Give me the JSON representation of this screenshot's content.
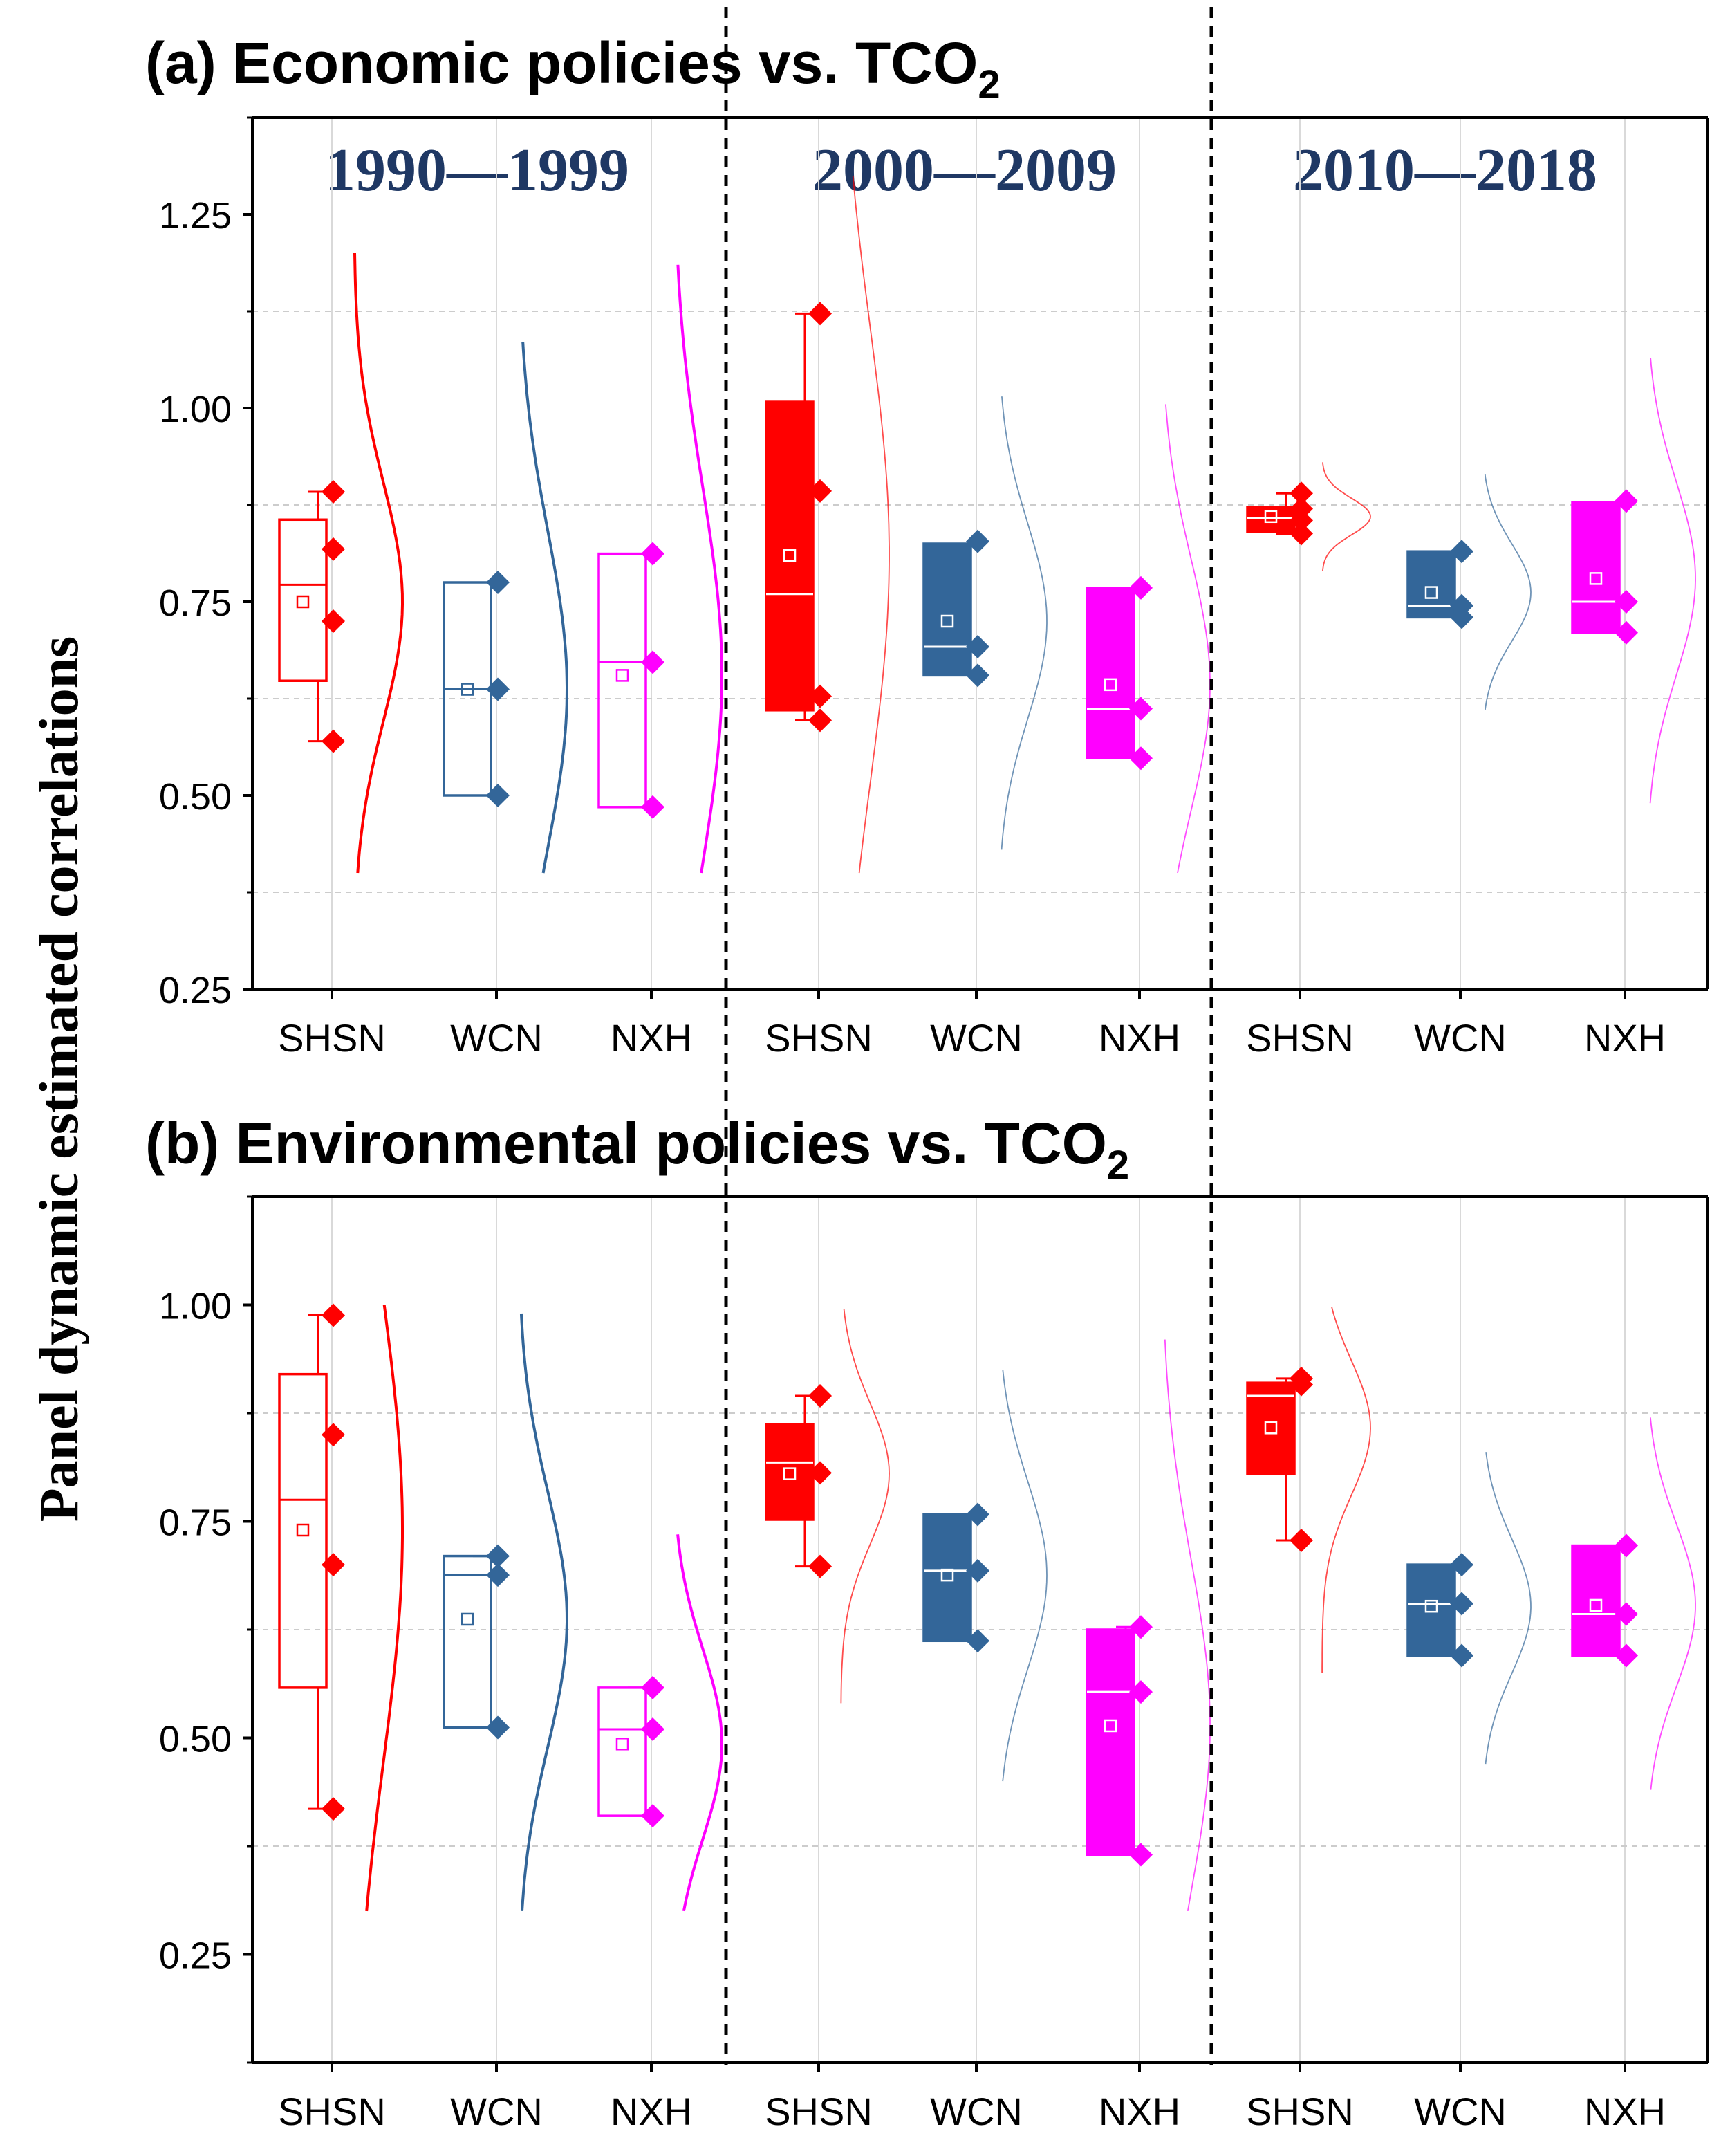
{
  "figure": {
    "ylabel": "Panel dynamic estimated correlations",
    "periods": [
      "1990—1999",
      "2000—2009",
      "2010—2018"
    ],
    "regions": [
      "SHSN",
      "WCN",
      "NXH"
    ],
    "region_colors": {
      "SHSN": "#ff0000",
      "WCN": "#336699",
      "NXH": "#ff00ff"
    },
    "period_label_color": "#1f3864"
  },
  "chart_data": [
    {
      "type": "box",
      "panel": "a",
      "title": "(a) Economic policies vs. TCO",
      "title_sub": "2",
      "ylim": [
        0.25,
        1.375
      ],
      "yticks": [
        0.25,
        0.5,
        0.75,
        1.0,
        1.25
      ],
      "ytick_labels": [
        "0.25",
        "0.50",
        "0.75",
        "1.00",
        "1.25"
      ],
      "categories": [
        "SHSN",
        "WCN",
        "NXH",
        "SHSN",
        "WCN",
        "NXH",
        "SHSN",
        "WCN",
        "NXH"
      ],
      "series": [
        {
          "period": "1990—1999",
          "region": "SHSN",
          "style": "outline",
          "q1": 0.648,
          "median": 0.772,
          "q3": 0.856,
          "mean": 0.75,
          "whisker_low": 0.57,
          "whisker_high": 0.892,
          "points": [
            0.892,
            0.818,
            0.725,
            0.57
          ],
          "dist_range": [
            0.4,
            1.2
          ]
        },
        {
          "period": "1990—1999",
          "region": "WCN",
          "style": "outline",
          "q1": 0.5,
          "median": 0.637,
          "q3": 0.775,
          "mean": 0.637,
          "whisker_low": 0.5,
          "whisker_high": 0.775,
          "points": [
            0.775,
            0.637,
            0.5
          ],
          "dist_range": [
            0.4,
            1.085
          ]
        },
        {
          "period": "1990—1999",
          "region": "NXH",
          "style": "outline",
          "q1": 0.485,
          "median": 0.672,
          "q3": 0.812,
          "mean": 0.655,
          "whisker_low": 0.485,
          "whisker_high": 0.812,
          "points": [
            0.812,
            0.672,
            0.485
          ],
          "dist_range": [
            0.4,
            1.185
          ]
        },
        {
          "period": "2000—2009",
          "region": "SHSN",
          "style": "filled",
          "q1": 0.61,
          "median": 0.76,
          "q3": 1.008,
          "mean": 0.81,
          "whisker_low": 0.597,
          "whisker_high": 1.122,
          "points": [
            1.122,
            0.893,
            0.628,
            0.597
          ],
          "dist_range": [
            0.4,
            1.3
          ]
        },
        {
          "period": "2000—2009",
          "region": "WCN",
          "style": "filled",
          "q1": 0.655,
          "median": 0.692,
          "q3": 0.825,
          "mean": 0.725,
          "whisker_low": 0.655,
          "whisker_high": 0.825,
          "points": [
            0.828,
            0.692,
            0.655
          ],
          "dist_range": [
            0.43,
            1.015
          ]
        },
        {
          "period": "2000—2009",
          "region": "NXH",
          "style": "filled",
          "q1": 0.548,
          "median": 0.612,
          "q3": 0.768,
          "mean": 0.643,
          "whisker_low": 0.548,
          "whisker_high": 0.768,
          "points": [
            0.768,
            0.612,
            0.548
          ],
          "dist_range": [
            0.4,
            1.005
          ]
        },
        {
          "period": "2010—2018",
          "region": "SHSN",
          "style": "filled",
          "q1": 0.84,
          "median": 0.858,
          "q3": 0.872,
          "mean": 0.86,
          "whisker_low": 0.838,
          "whisker_high": 0.89,
          "points": [
            0.89,
            0.87,
            0.855,
            0.838
          ],
          "dist_range": [
            0.79,
            0.93
          ]
        },
        {
          "period": "2010—2018",
          "region": "WCN",
          "style": "filled",
          "q1": 0.73,
          "median": 0.745,
          "q3": 0.815,
          "mean": 0.762,
          "whisker_low": 0.73,
          "whisker_high": 0.815,
          "points": [
            0.815,
            0.745,
            0.73
          ],
          "dist_range": [
            0.61,
            0.915
          ]
        },
        {
          "period": "2010—2018",
          "region": "NXH",
          "style": "filled",
          "q1": 0.71,
          "median": 0.75,
          "q3": 0.878,
          "mean": 0.78,
          "whisker_low": 0.71,
          "whisker_high": 0.878,
          "points": [
            0.88,
            0.75,
            0.71
          ],
          "dist_range": [
            0.49,
            1.065
          ]
        }
      ]
    },
    {
      "type": "box",
      "panel": "b",
      "title": "(b) Environmental policies vs. TCO",
      "title_sub": "2",
      "ylim": [
        0.125,
        1.125
      ],
      "yticks": [
        0.25,
        0.5,
        0.75,
        1.0
      ],
      "ytick_labels": [
        "0.25",
        "0.50",
        "0.75",
        "1.00"
      ],
      "categories": [
        "SHSN",
        "WCN",
        "NXH",
        "SHSN",
        "WCN",
        "NXH",
        "SHSN",
        "WCN",
        "NXH"
      ],
      "series": [
        {
          "period": "1990—1999",
          "region": "SHSN",
          "style": "outline",
          "q1": 0.558,
          "median": 0.775,
          "q3": 0.92,
          "mean": 0.74,
          "whisker_low": 0.418,
          "whisker_high": 0.988,
          "points": [
            0.988,
            0.85,
            0.7,
            0.418
          ],
          "dist_range": [
            0.3,
            1.0
          ]
        },
        {
          "period": "1990—1999",
          "region": "WCN",
          "style": "outline",
          "q1": 0.512,
          "median": 0.688,
          "q3": 0.71,
          "mean": 0.637,
          "whisker_low": 0.512,
          "whisker_high": 0.71,
          "points": [
            0.71,
            0.688,
            0.512
          ],
          "dist_range": [
            0.3,
            0.99
          ]
        },
        {
          "period": "1990—1999",
          "region": "NXH",
          "style": "outline",
          "q1": 0.41,
          "median": 0.51,
          "q3": 0.558,
          "mean": 0.493,
          "whisker_low": 0.41,
          "whisker_high": 0.558,
          "points": [
            0.558,
            0.51,
            0.41
          ],
          "dist_range": [
            0.3,
            0.735
          ]
        },
        {
          "period": "2000—2009",
          "region": "SHSN",
          "style": "filled",
          "q1": 0.752,
          "median": 0.818,
          "q3": 0.862,
          "mean": 0.805,
          "whisker_low": 0.698,
          "whisker_high": 0.895,
          "points": [
            0.895,
            0.806,
            0.698
          ],
          "dist_range": [
            0.54,
            0.995
          ]
        },
        {
          "period": "2000—2009",
          "region": "WCN",
          "style": "filled",
          "q1": 0.612,
          "median": 0.693,
          "q3": 0.758,
          "mean": 0.688,
          "whisker_low": 0.612,
          "whisker_high": 0.758,
          "points": [
            0.758,
            0.693,
            0.612
          ],
          "dist_range": [
            0.45,
            0.925
          ]
        },
        {
          "period": "2000—2009",
          "region": "NXH",
          "style": "filled",
          "q1": 0.365,
          "median": 0.553,
          "q3": 0.625,
          "mean": 0.514,
          "whisker_low": 0.365,
          "whisker_high": 0.628,
          "points": [
            0.628,
            0.553,
            0.365
          ],
          "dist_range": [
            0.3,
            0.96
          ]
        },
        {
          "period": "2010—2018",
          "region": "SHSN",
          "style": "filled",
          "q1": 0.805,
          "median": 0.895,
          "q3": 0.91,
          "mean": 0.858,
          "whisker_low": 0.728,
          "whisker_high": 0.915,
          "points": [
            0.915,
            0.908,
            0.728
          ],
          "dist_range": [
            0.575,
            0.998
          ]
        },
        {
          "period": "2010—2018",
          "region": "WCN",
          "style": "filled",
          "q1": 0.595,
          "median": 0.655,
          "q3": 0.7,
          "mean": 0.652,
          "whisker_low": 0.595,
          "whisker_high": 0.7,
          "points": [
            0.7,
            0.655,
            0.595
          ],
          "dist_range": [
            0.47,
            0.83
          ]
        },
        {
          "period": "2010—2018",
          "region": "NXH",
          "style": "filled",
          "q1": 0.595,
          "median": 0.643,
          "q3": 0.722,
          "mean": 0.653,
          "whisker_low": 0.595,
          "whisker_high": 0.722,
          "points": [
            0.722,
            0.643,
            0.595
          ],
          "dist_range": [
            0.44,
            0.87
          ]
        }
      ]
    }
  ]
}
